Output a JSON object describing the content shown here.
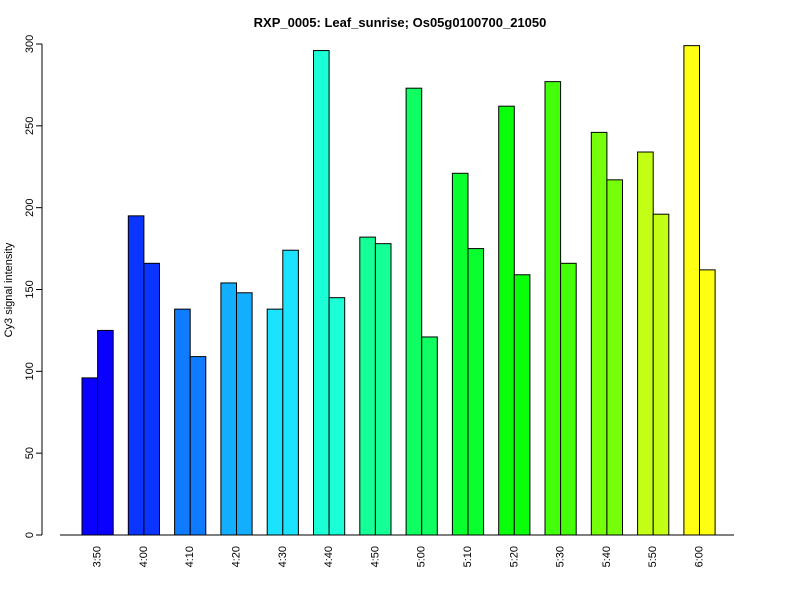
{
  "chart_data": {
    "type": "bar",
    "title": "RXP_0005: Leaf_sunrise; Os05g0100700_21050",
    "xlabel": "",
    "ylabel": "Cy3 signal intensity",
    "ylim": [
      0,
      300
    ],
    "yticks": [
      0,
      50,
      100,
      150,
      200,
      250,
      300
    ],
    "grid": false,
    "legend": "none",
    "categories": [
      "3:50",
      "4:00",
      "4:10",
      "4:20",
      "4:30",
      "4:40",
      "4:50",
      "5:00",
      "5:10",
      "5:20",
      "5:30",
      "5:40",
      "5:50",
      "6:00"
    ],
    "colors": [
      "#0A00FF",
      "#0A34FF",
      "#0F7BFF",
      "#14AEFF",
      "#1AE2FF",
      "#1AFFD6",
      "#14FF96",
      "#0FFF62",
      "#0AFF2E",
      "#0AFF0A",
      "#43FF0A",
      "#76FF0A",
      "#C3FF14",
      "#FFFF14"
    ],
    "series": [
      {
        "values": [
          96,
          195,
          138,
          154,
          138,
          296,
          182,
          273,
          221,
          262,
          277,
          246,
          234,
          299
        ]
      },
      {
        "values": [
          125,
          166,
          109,
          148,
          174,
          145,
          178,
          121,
          175,
          159,
          166,
          217,
          196,
          162
        ]
      }
    ]
  }
}
